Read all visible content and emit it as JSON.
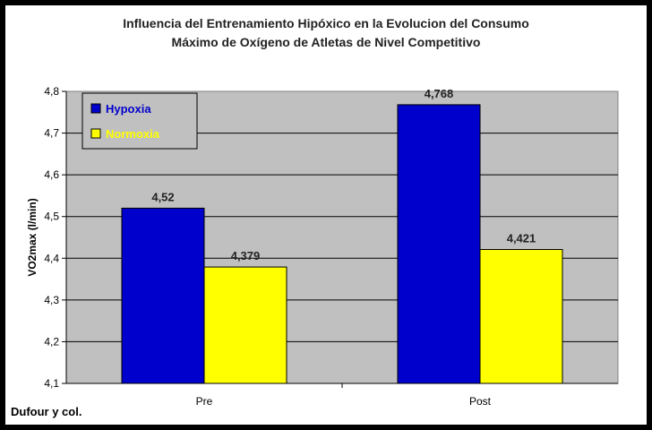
{
  "chart_data": {
    "type": "bar",
    "title_line1": "Influencia del Entrenamiento Hipóxico en la Evolucion del Consumo",
    "title_line2": "Máximo de Oxígeno de Atletas de Nivel Competitivo",
    "xlabel": "",
    "ylabel": "VO2max (l/min)",
    "ylim": [
      4.1,
      4.8
    ],
    "yticks": [
      "4,1",
      "4,2",
      "4,3",
      "4,4",
      "4,5",
      "4,6",
      "4,7",
      "4,8"
    ],
    "categories": [
      "Pre",
      "Post"
    ],
    "series": [
      {
        "name": "Hypoxia",
        "color": "#0000cc",
        "values": [
          4.52,
          4.768
        ],
        "labels": [
          "4,52",
          "4,768"
        ]
      },
      {
        "name": "Normoxia",
        "color": "#ffff00",
        "values": [
          4.379,
          4.421
        ],
        "labels": [
          "4,379",
          "4,421"
        ]
      }
    ],
    "grid": true,
    "legend_position": "top-left",
    "plot_background": "#c0c0c0"
  },
  "source_note": "Dufour y col."
}
